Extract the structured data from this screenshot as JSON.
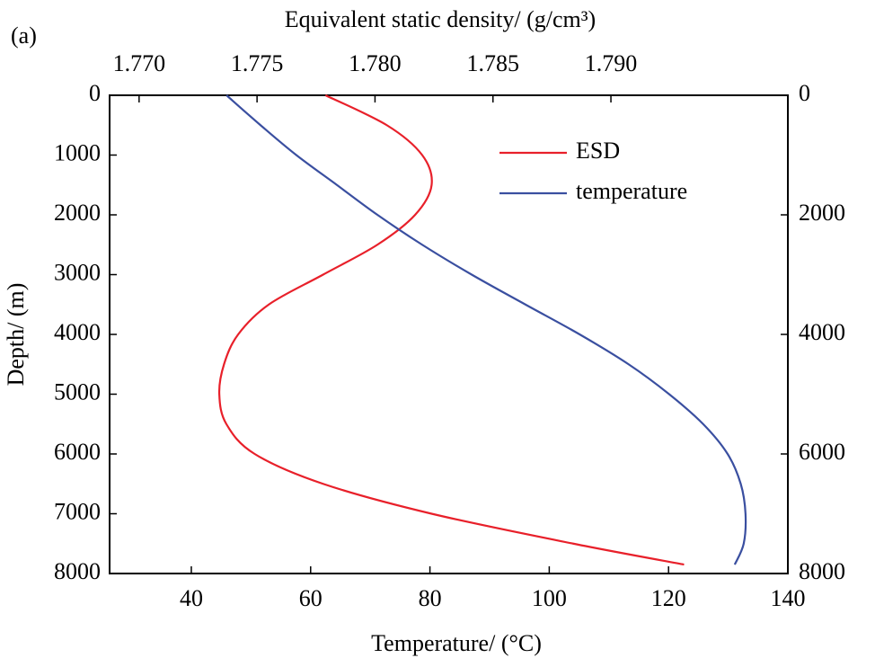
{
  "chart_data": {
    "type": "line",
    "panel_label": "(a)",
    "x2label": "Equivalent static density/ (g/cm³)",
    "xlabel": "Temperature/ (°C)",
    "ylabel": "Depth/ (m)",
    "depth": [
      0,
      500,
      1000,
      1500,
      2000,
      2500,
      3000,
      3500,
      4000,
      4500,
      5000,
      5500,
      6000,
      6500,
      7000,
      7500,
      7850
    ],
    "series": [
      {
        "name": "ESD",
        "color": "#e8202a",
        "axis": "x2",
        "values": [
          1.7779,
          1.7805,
          1.782,
          1.7824,
          1.7817,
          1.7801,
          1.7778,
          1.7755,
          1.7742,
          1.7736,
          1.7734,
          1.7737,
          1.7749,
          1.7778,
          1.7824,
          1.7884,
          1.7931
        ]
      },
      {
        "name": "temperature",
        "color": "#3a4fa0",
        "axis": "x",
        "values": [
          45.9,
          51.6,
          57.6,
          64.4,
          71.2,
          78.7,
          87.0,
          96.0,
          105.1,
          113.3,
          120.1,
          125.8,
          129.9,
          132.1,
          132.9,
          132.6,
          131.1
        ]
      }
    ],
    "xlim": [
      26.3,
      140
    ],
    "xticks": [
      40,
      60,
      80,
      100,
      120,
      140
    ],
    "x2lim": [
      1.76875,
      1.7975
    ],
    "x2ticks": [
      {
        "value": 1.77,
        "label": "1.770"
      },
      {
        "value": 1.775,
        "label": "1.775"
      },
      {
        "value": 1.78,
        "label": "1.780"
      },
      {
        "value": 1.785,
        "label": "1.785"
      },
      {
        "value": 1.79,
        "label": "1.790"
      }
    ],
    "ylim": [
      0,
      8000
    ],
    "y_inverted": true,
    "yticks": [
      0,
      1000,
      2000,
      3000,
      4000,
      5000,
      6000,
      7000,
      8000
    ],
    "y2ticks": [
      0,
      2000,
      4000,
      6000,
      8000
    ],
    "grid": false,
    "legend": "upper right"
  }
}
